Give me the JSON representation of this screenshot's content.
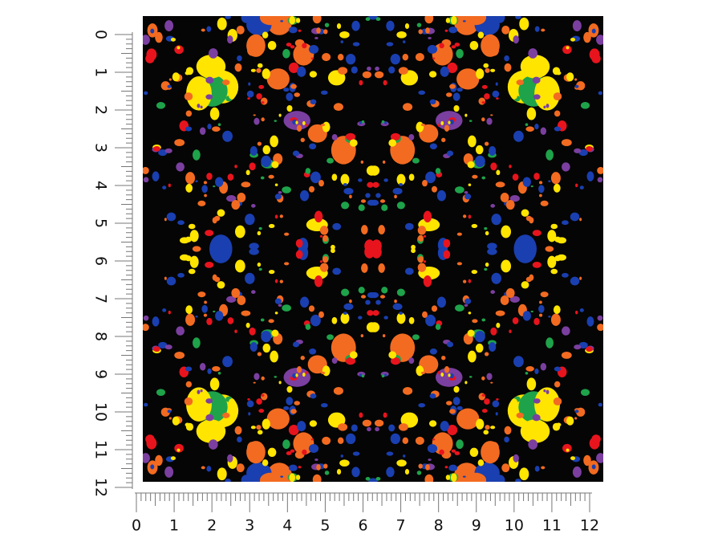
{
  "rulers": {
    "left": {
      "labels": [
        0,
        1,
        2,
        3,
        4,
        5,
        6,
        7,
        8,
        9,
        10,
        11,
        12
      ]
    },
    "bottom": {
      "labels": [
        0,
        1,
        2,
        3,
        4,
        5,
        6,
        7,
        8,
        9,
        10,
        11,
        12
      ]
    }
  }
}
